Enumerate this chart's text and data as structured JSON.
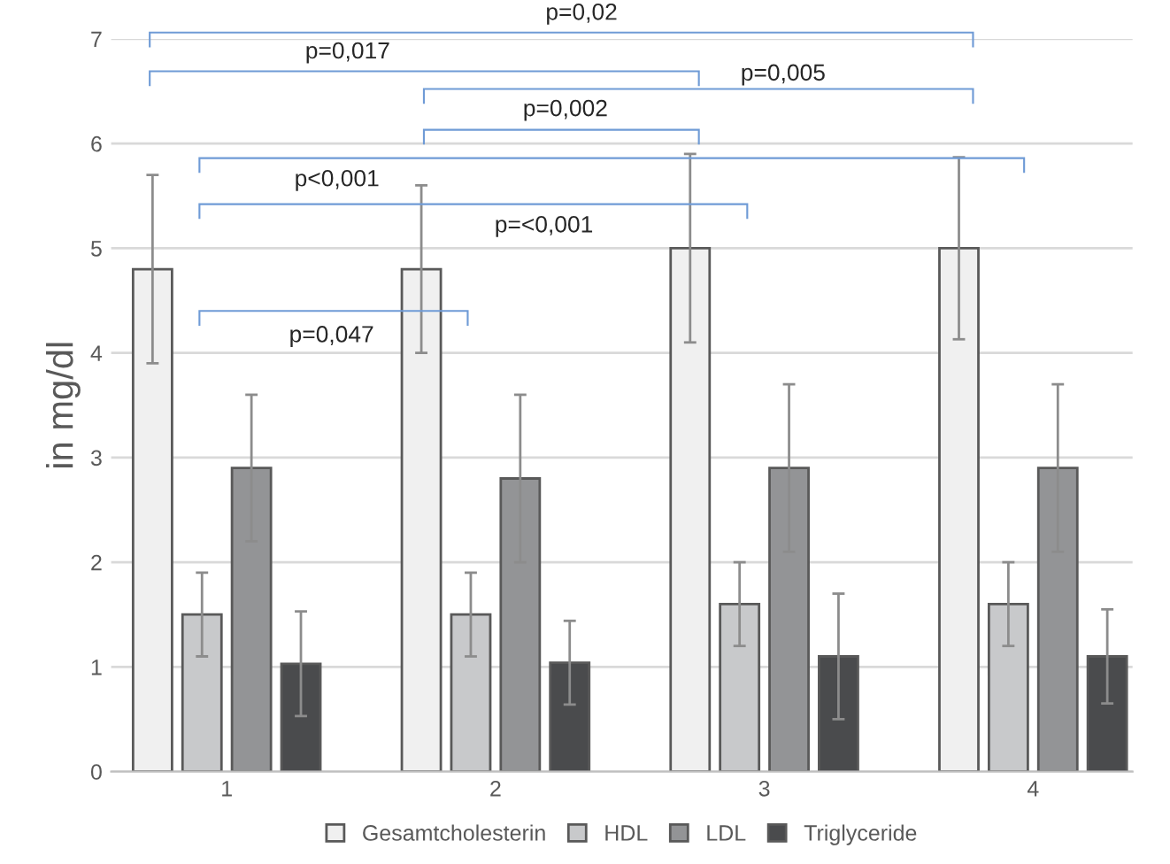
{
  "chart_data": {
    "type": "bar",
    "ylabel": "in mg/dl",
    "categories": [
      "1",
      "2",
      "3",
      "4"
    ],
    "series": [
      {
        "name": "Gesamtcholesterin",
        "color": "#f0f0f0",
        "values": [
          4.8,
          4.8,
          5.0,
          5.0
        ],
        "errors": [
          0.9,
          0.8,
          0.9,
          0.87
        ]
      },
      {
        "name": "HDL",
        "color": "#c8c9cb",
        "values": [
          1.5,
          1.5,
          1.6,
          1.6
        ],
        "errors": [
          0.4,
          0.4,
          0.4,
          0.4
        ]
      },
      {
        "name": "LDL",
        "color": "#939496",
        "values": [
          2.9,
          2.8,
          2.9,
          2.9
        ],
        "errors": [
          0.7,
          0.8,
          0.8,
          0.8
        ]
      },
      {
        "name": "Triglyceride",
        "color": "#4a4b4d",
        "values": [
          1.03,
          1.04,
          1.1,
          1.1
        ],
        "errors": [
          0.5,
          0.4,
          0.6,
          0.45
        ]
      }
    ],
    "ylim": [
      0,
      7
    ],
    "yticks": [
      0,
      1,
      2,
      3,
      4,
      5,
      6,
      7
    ],
    "grid": "y",
    "legend": "bottom",
    "annotations": [
      "p=0,02",
      "p=0,017",
      "p=0,005",
      "p=0,002",
      "p<0,001",
      "p=<0,001",
      "p=0,047"
    ]
  }
}
